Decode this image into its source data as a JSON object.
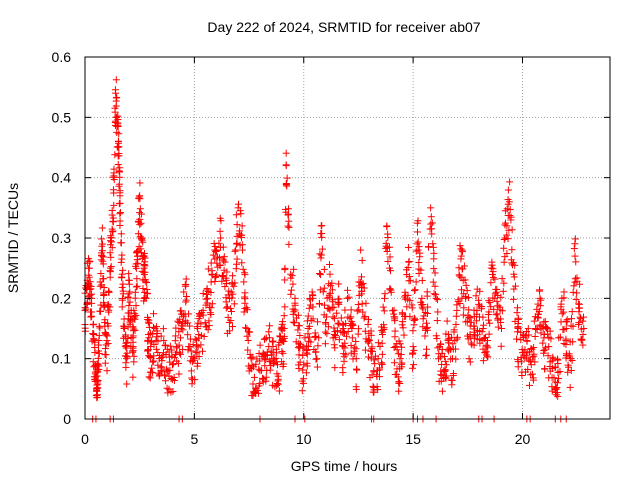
{
  "chart_data": {
    "type": "scatter",
    "title": "Day 222 of 2024, SRMTID for receiver ab07",
    "xlabel": "GPS time / hours",
    "ylabel": "SRMTID / TECUs",
    "xlim": [
      0,
      24
    ],
    "ylim": [
      0,
      0.6
    ],
    "xticks": [
      0,
      5,
      10,
      15,
      20
    ],
    "yticks": [
      0,
      0.1,
      0.2,
      0.3,
      0.4,
      0.5,
      0.6
    ],
    "grid": true,
    "marker": "+",
    "series_color": "#ff0000",
    "zero_points_x": [
      0.35,
      0.5,
      1.15,
      1.3,
      4.3,
      4.45,
      8.0,
      9.6,
      10.05,
      13.1,
      13.2,
      15.0,
      15.2,
      15.45,
      16.05,
      18.0,
      18.15,
      18.7,
      20.2,
      20.35,
      21.5,
      21.75,
      22.0
    ],
    "series": [
      {
        "name": "SRMTID",
        "x": [
          0.0,
          0.1,
          0.2,
          0.3,
          0.4,
          0.5,
          0.55,
          0.6,
          0.7,
          0.8,
          0.9,
          1.0,
          1.1,
          1.2,
          1.3,
          1.4,
          1.5,
          1.55,
          1.6,
          1.7,
          1.8,
          1.9,
          2.0,
          2.1,
          2.2,
          2.3,
          2.4,
          2.5,
          2.6,
          2.7,
          2.8,
          2.9,
          3.0,
          3.2,
          3.4,
          3.6,
          3.8,
          4.0,
          4.2,
          4.4,
          4.6,
          4.8,
          5.0,
          5.2,
          5.4,
          5.6,
          5.8,
          6.0,
          6.2,
          6.4,
          6.6,
          6.8,
          7.0,
          7.2,
          7.4,
          7.6,
          7.8,
          8.0,
          8.2,
          8.4,
          8.6,
          8.8,
          9.0,
          9.1,
          9.2,
          9.4,
          9.6,
          9.8,
          10.0,
          10.2,
          10.4,
          10.6,
          10.8,
          11.0,
          11.2,
          11.4,
          11.6,
          11.8,
          12.0,
          12.2,
          12.4,
          12.6,
          12.8,
          13.0,
          13.2,
          13.4,
          13.6,
          13.8,
          14.0,
          14.2,
          14.4,
          14.6,
          14.8,
          15.0,
          15.2,
          15.4,
          15.6,
          15.8,
          16.0,
          16.2,
          16.4,
          16.6,
          16.8,
          17.0,
          17.2,
          17.4,
          17.6,
          17.8,
          18.0,
          18.2,
          18.4,
          18.6,
          18.8,
          19.0,
          19.2,
          19.4,
          19.6,
          19.8,
          20.0,
          20.2,
          20.4,
          20.6,
          20.8,
          21.0,
          21.2,
          21.4,
          21.6,
          21.8,
          22.0,
          22.2,
          22.4,
          22.6,
          22.8
        ],
        "y": [
          0.18,
          0.23,
          0.25,
          0.2,
          0.14,
          0.07,
          0.04,
          0.09,
          0.22,
          0.29,
          0.16,
          0.13,
          0.21,
          0.3,
          0.38,
          0.54,
          0.49,
          0.44,
          0.37,
          0.24,
          0.15,
          0.1,
          0.23,
          0.17,
          0.12,
          0.21,
          0.27,
          0.37,
          0.3,
          0.25,
          0.2,
          0.14,
          0.12,
          0.15,
          0.1,
          0.13,
          0.08,
          0.09,
          0.12,
          0.15,
          0.22,
          0.12,
          0.1,
          0.14,
          0.18,
          0.2,
          0.24,
          0.28,
          0.3,
          0.26,
          0.16,
          0.22,
          0.35,
          0.28,
          0.15,
          0.1,
          0.05,
          0.08,
          0.1,
          0.12,
          0.11,
          0.09,
          0.13,
          0.15,
          0.42,
          0.24,
          0.2,
          0.12,
          0.09,
          0.15,
          0.2,
          0.1,
          0.32,
          0.16,
          0.24,
          0.14,
          0.19,
          0.12,
          0.2,
          0.15,
          0.1,
          0.28,
          0.17,
          0.13,
          0.08,
          0.1,
          0.14,
          0.32,
          0.21,
          0.12,
          0.1,
          0.17,
          0.26,
          0.12,
          0.31,
          0.2,
          0.15,
          0.35,
          0.22,
          0.12,
          0.08,
          0.13,
          0.1,
          0.18,
          0.27,
          0.2,
          0.14,
          0.17,
          0.19,
          0.15,
          0.13,
          0.26,
          0.21,
          0.16,
          0.3,
          0.36,
          0.24,
          0.15,
          0.11,
          0.13,
          0.09,
          0.15,
          0.2,
          0.14,
          0.12,
          0.1,
          0.06,
          0.2,
          0.15,
          0.1,
          0.27,
          0.19,
          0.15
        ]
      }
    ]
  }
}
